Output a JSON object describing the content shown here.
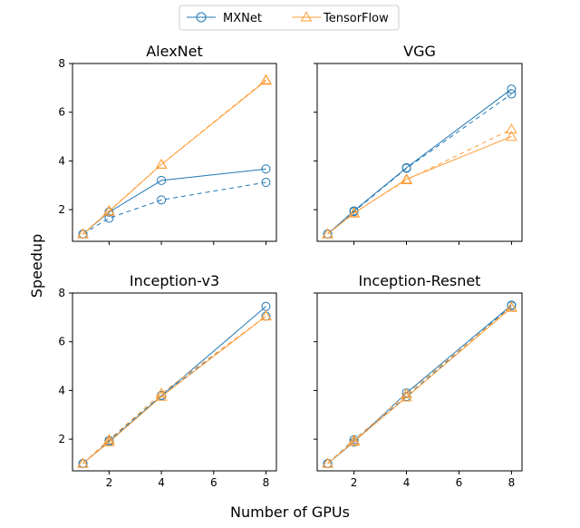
{
  "chart_data": {
    "type": "line",
    "legend": {
      "placement": "top-center",
      "entries": [
        {
          "name": "MXNet",
          "marker": "circle",
          "color": "#1f77b4"
        },
        {
          "name": "TensorFlow",
          "marker": "triangle",
          "color": "#ff9f3a"
        }
      ]
    },
    "xlabel": "Number of GPUs",
    "ylabel": "Speedup",
    "xlim": [
      0.6,
      8.4
    ],
    "ylim": [
      0.7,
      8.0
    ],
    "xticks": [
      2,
      4,
      6,
      8
    ],
    "yticks": [
      2,
      4,
      6,
      8
    ],
    "x": [
      1,
      2,
      4,
      8
    ],
    "panels": [
      {
        "title": "AlexNet",
        "series": [
          {
            "name": "MXNet",
            "style": "solid",
            "values": [
              1.0,
              1.9,
              3.2,
              3.67
            ]
          },
          {
            "name": "MXNet",
            "style": "dashed",
            "values": [
              1.0,
              1.65,
              2.4,
              3.12
            ]
          },
          {
            "name": "TensorFlow",
            "style": "solid",
            "values": [
              1.0,
              1.93,
              3.85,
              7.3
            ]
          },
          {
            "name": "TensorFlow",
            "style": "dashed",
            "values": [
              1.0,
              1.95,
              3.86,
              7.33
            ]
          }
        ]
      },
      {
        "title": "VGG",
        "series": [
          {
            "name": "MXNet",
            "style": "solid",
            "values": [
              1.0,
              1.95,
              3.72,
              6.95
            ]
          },
          {
            "name": "MXNet",
            "style": "dashed",
            "values": [
              1.0,
              1.92,
              3.7,
              6.75
            ]
          },
          {
            "name": "TensorFlow",
            "style": "solid",
            "values": [
              1.0,
              1.85,
              3.25,
              5.0
            ]
          },
          {
            "name": "TensorFlow",
            "style": "dashed",
            "values": [
              1.0,
              1.87,
              3.22,
              5.3
            ]
          }
        ]
      },
      {
        "title": "Inception-v3",
        "series": [
          {
            "name": "MXNet",
            "style": "solid",
            "values": [
              1.0,
              1.9,
              3.78,
              7.45
            ]
          },
          {
            "name": "MXNet",
            "style": "dashed",
            "values": [
              1.0,
              1.95,
              3.8,
              7.05
            ]
          },
          {
            "name": "TensorFlow",
            "style": "solid",
            "values": [
              1.0,
              1.88,
              3.75,
              7.05
            ]
          },
          {
            "name": "TensorFlow",
            "style": "dashed",
            "values": [
              1.0,
              1.98,
              3.88,
              7.05
            ]
          }
        ]
      },
      {
        "title": "Inception-Resnet",
        "series": [
          {
            "name": "MXNet",
            "style": "solid",
            "values": [
              1.0,
              1.88,
              3.9,
              7.5
            ]
          },
          {
            "name": "MXNet",
            "style": "dashed",
            "values": [
              1.0,
              1.98,
              3.75,
              7.48
            ]
          },
          {
            "name": "TensorFlow",
            "style": "solid",
            "values": [
              1.0,
              1.9,
              3.72,
              7.4
            ]
          },
          {
            "name": "TensorFlow",
            "style": "dashed",
            "values": [
              1.0,
              1.95,
              3.85,
              7.42
            ]
          }
        ]
      }
    ]
  }
}
